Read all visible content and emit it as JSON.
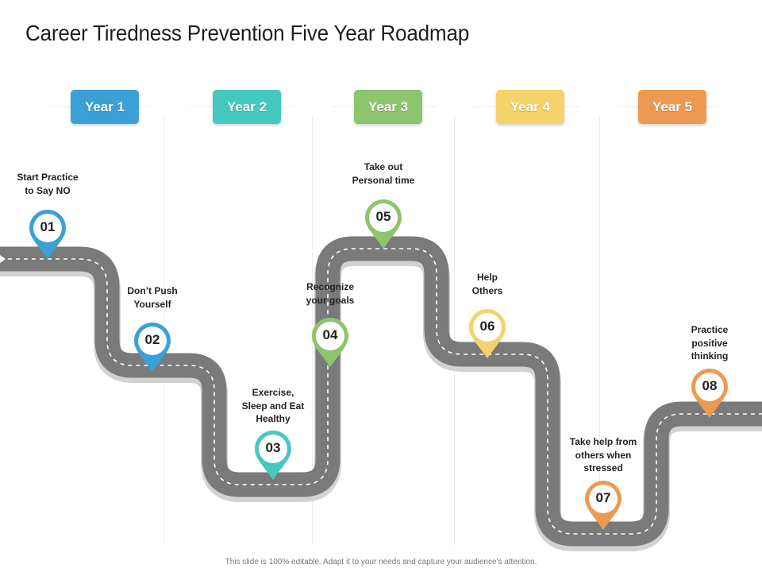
{
  "slide": {
    "title": "Career Tiredness Prevention Five Year Roadmap",
    "footer": "This slide is 100% editable. Adapt it to your needs and capture your audience's attention."
  },
  "years": [
    {
      "label": "Year 1",
      "color": "#3aa0d8"
    },
    {
      "label": "Year 2",
      "color": "#45c9bf"
    },
    {
      "label": "Year 3",
      "color": "#8cc56d"
    },
    {
      "label": "Year 4",
      "color": "#f5d36a"
    },
    {
      "label": "Year 5",
      "color": "#ec9a52"
    }
  ],
  "milestones": [
    {
      "number": "01",
      "text": "Start Practice to Say NO",
      "color": "#3aa0d8"
    },
    {
      "number": "02",
      "text": "Don’t Push Yourself",
      "color": "#3aa0d8"
    },
    {
      "number": "03",
      "text": "Exercise, Sleep and Eat Healthy",
      "color": "#45c9bf"
    },
    {
      "number": "04",
      "text": "Recognize your goals",
      "color": "#8cc56d"
    },
    {
      "number": "05",
      "text": "Take out Personal time",
      "color": "#8cc56d"
    },
    {
      "number": "06",
      "text": "Help Others",
      "color": "#f5d36a"
    },
    {
      "number": "07",
      "text": "Take help from others when stressed",
      "color": "#ec9a52"
    },
    {
      "number": "08",
      "text": "Practice positive thinking",
      "color": "#ec9a52"
    }
  ]
}
